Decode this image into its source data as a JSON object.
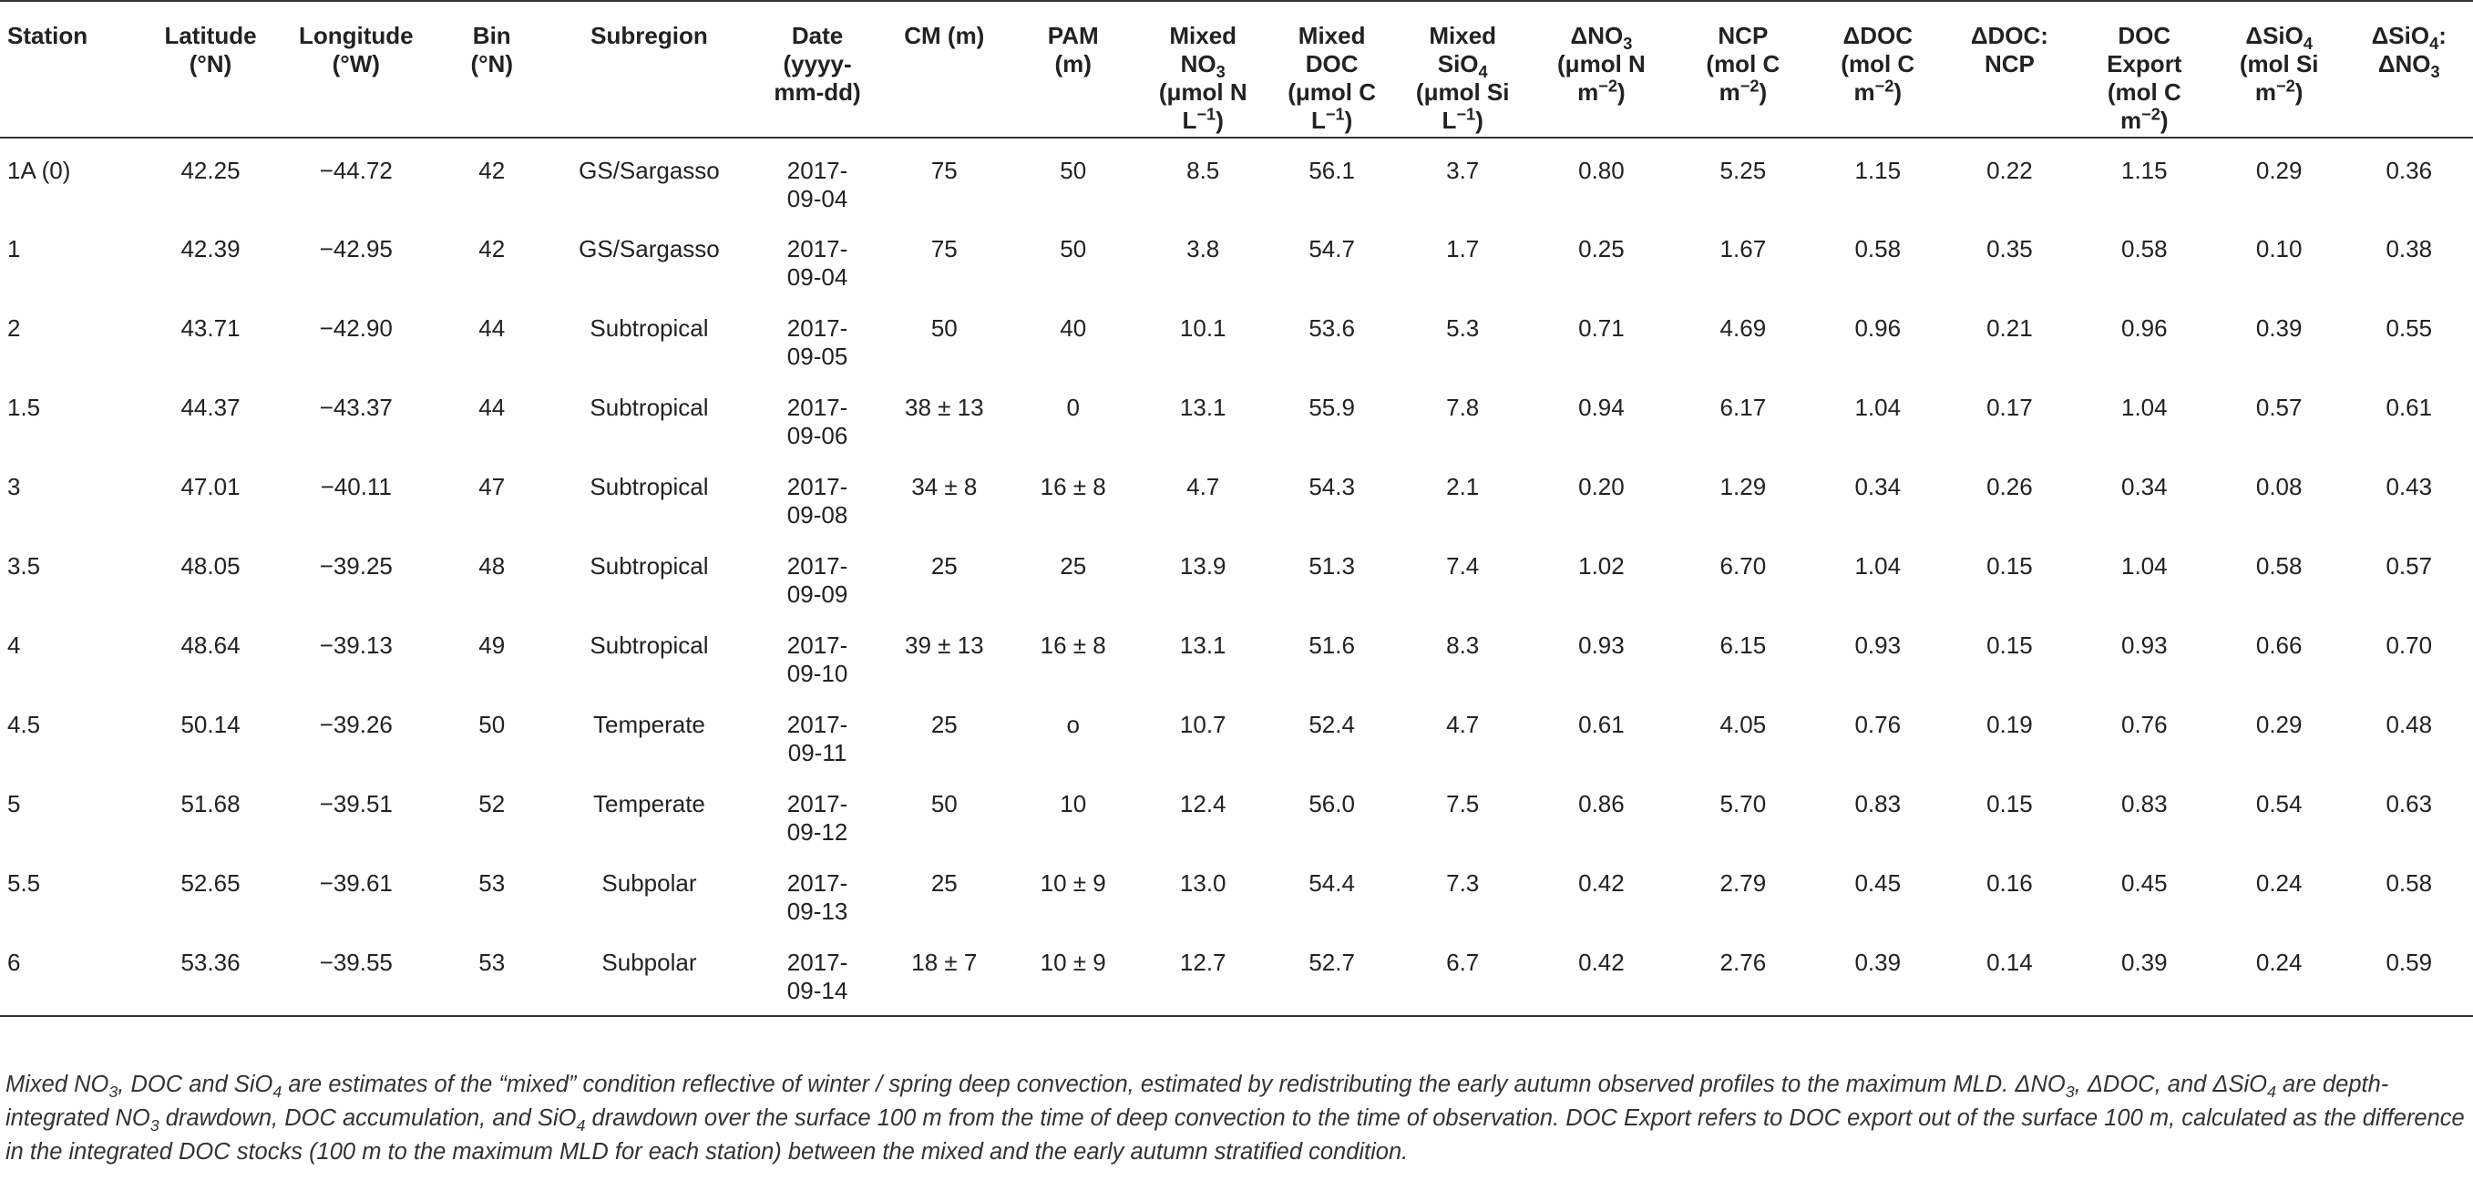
{
  "table": {
    "headers": [
      {
        "key": "station",
        "html": "Station",
        "align": "left"
      },
      {
        "key": "lat",
        "html": "Latitude<br>(°N)"
      },
      {
        "key": "lon",
        "html": "Longitude<br>(°W)"
      },
      {
        "key": "bin",
        "html": "Bin<br>(°N)"
      },
      {
        "key": "subregion",
        "html": "Subregion"
      },
      {
        "key": "date",
        "html": "Date<br>(yyyy-<br>mm-dd)"
      },
      {
        "key": "cm",
        "html": "CM (m)"
      },
      {
        "key": "pam",
        "html": "PAM<br>(m)"
      },
      {
        "key": "mno3",
        "html": "Mixed<br>NO<sub>3</sub><br>(μmol N<br>L<sup>−1</sup>)"
      },
      {
        "key": "mdoc",
        "html": "Mixed<br>DOC<br>(μmol C<br>L<sup>−1</sup>)"
      },
      {
        "key": "msio4",
        "html": "Mixed<br>SiO<sub>4</sub><br>(μmol Si<br>L<sup>−1</sup>)"
      },
      {
        "key": "dno3",
        "html": "ΔNO<sub>3</sub><br>(μmol N<br>m<sup>−2</sup>)"
      },
      {
        "key": "ncp",
        "html": "NCP<br>(mol C<br>m<sup>−2</sup>)"
      },
      {
        "key": "ddoc",
        "html": "ΔDOC<br>(mol C<br>m<sup>−2</sup>)"
      },
      {
        "key": "ddocncp",
        "html": "ΔDOC:<br>NCP"
      },
      {
        "key": "docexp",
        "html": "DOC<br>Export<br>(mol C<br>m<sup>−2</sup>)"
      },
      {
        "key": "dsio4",
        "html": "ΔSiO<sub>4</sub><br>(mol Si<br>m<sup>−2</sup>)"
      },
      {
        "key": "ratio",
        "html": "ΔSiO<sub>4</sub>:<br>ΔNO<sub>3</sub>"
      }
    ],
    "rows": [
      [
        "1A (0)",
        "42.25",
        "−44.72",
        "42",
        "GS/Sargasso",
        "2017-\n09-04",
        "75",
        "50",
        "8.5",
        "56.1",
        "3.7",
        "0.80",
        "5.25",
        "1.15",
        "0.22",
        "1.15",
        "0.29",
        "0.36"
      ],
      [
        "1",
        "42.39",
        "−42.95",
        "42",
        "GS/Sargasso",
        "2017-\n09-04",
        "75",
        "50",
        "3.8",
        "54.7",
        "1.7",
        "0.25",
        "1.67",
        "0.58",
        "0.35",
        "0.58",
        "0.10",
        "0.38"
      ],
      [
        "2",
        "43.71",
        "−42.90",
        "44",
        "Subtropical",
        "2017-\n09-05",
        "50",
        "40",
        "10.1",
        "53.6",
        "5.3",
        "0.71",
        "4.69",
        "0.96",
        "0.21",
        "0.96",
        "0.39",
        "0.55"
      ],
      [
        "1.5",
        "44.37",
        "−43.37",
        "44",
        "Subtropical",
        "2017-\n09-06",
        "38 ± 13",
        "0",
        "13.1",
        "55.9",
        "7.8",
        "0.94",
        "6.17",
        "1.04",
        "0.17",
        "1.04",
        "0.57",
        "0.61"
      ],
      [
        "3",
        "47.01",
        "−40.11",
        "47",
        "Subtropical",
        "2017-\n09-08",
        "34 ± 8",
        "16 ± 8",
        "4.7",
        "54.3",
        "2.1",
        "0.20",
        "1.29",
        "0.34",
        "0.26",
        "0.34",
        "0.08",
        "0.43"
      ],
      [
        "3.5",
        "48.05",
        "−39.25",
        "48",
        "Subtropical",
        "2017-\n09-09",
        "25",
        "25",
        "13.9",
        "51.3",
        "7.4",
        "1.02",
        "6.70",
        "1.04",
        "0.15",
        "1.04",
        "0.58",
        "0.57"
      ],
      [
        "4",
        "48.64",
        "−39.13",
        "49",
        "Subtropical",
        "2017-\n09-10",
        "39 ± 13",
        "16 ± 8",
        "13.1",
        "51.6",
        "8.3",
        "0.93",
        "6.15",
        "0.93",
        "0.15",
        "0.93",
        "0.66",
        "0.70"
      ],
      [
        "4.5",
        "50.14",
        "−39.26",
        "50",
        "Temperate",
        "2017-\n09-11",
        "25",
        "o",
        "10.7",
        "52.4",
        "4.7",
        "0.61",
        "4.05",
        "0.76",
        "0.19",
        "0.76",
        "0.29",
        "0.48"
      ],
      [
        "5",
        "51.68",
        "−39.51",
        "52",
        "Temperate",
        "2017-\n09-12",
        "50",
        "10",
        "12.4",
        "56.0",
        "7.5",
        "0.86",
        "5.70",
        "0.83",
        "0.15",
        "0.83",
        "0.54",
        "0.63"
      ],
      [
        "5.5",
        "52.65",
        "−39.61",
        "53",
        "Subpolar",
        "2017-\n09-13",
        "25",
        "10 ± 9",
        "13.0",
        "54.4",
        "7.3",
        "0.42",
        "2.79",
        "0.45",
        "0.16",
        "0.45",
        "0.24",
        "0.58"
      ],
      [
        "6",
        "53.36",
        "−39.55",
        "53",
        "Subpolar",
        "2017-\n09-14",
        "18 ± 7",
        "10 ± 9",
        "12.7",
        "52.7",
        "6.7",
        "0.42",
        "2.76",
        "0.39",
        "0.14",
        "0.39",
        "0.24",
        "0.59"
      ]
    ]
  },
  "footnote": "Mixed NO<sub>3</sub>, DOC and SiO<sub>4</sub> are estimates of the “mixed” condition reflective of winter / spring deep convection, estimated by redistributing the early autumn observed profiles to the maximum MLD. ΔNO<sub>3</sub>, ΔDOC, and ΔSiO<sub>4</sub> are depth-integrated NO<sub>3</sub> drawdown, DOC accumulation, and SiO<sub>4</sub> drawdown over the surface 100 m from the time of deep convection to the time of observation. DOC Export refers to DOC export out of the surface 100 m, calculated as the difference in the integrated DOC stocks (100 m to the maximum MLD for each station) between the mixed and the early autumn stratified condition."
}
